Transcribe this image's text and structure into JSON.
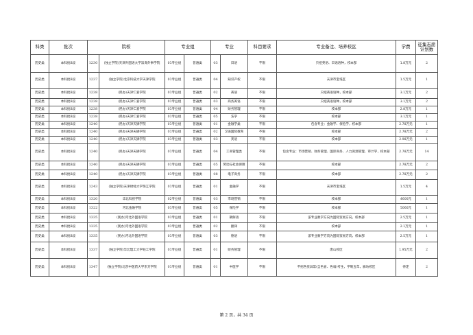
{
  "headers": {
    "category": "科类",
    "batch": "批次",
    "school": "院校",
    "group": "专业组",
    "major": "专业",
    "subject_req": "科目要求",
    "notes": "专业备注、培养校区",
    "tuition": "学费",
    "plan": "征集志愿计划数"
  },
  "rows": [
    {
      "category": "历史类",
      "batch": "本科批B段",
      "school_code": "1230",
      "school": "(独立学院)天津外国语大学滨海外事学院",
      "group_code": "01专业组",
      "group_type": "普通类",
      "major_code": "03",
      "major": "日语",
      "subject_req": "不限",
      "notes": "只招英语、日语语种，校本部",
      "tuition": "1.8万元",
      "plan": "2"
    },
    {
      "category": "历史类",
      "batch": "本科批B段",
      "school_code": "1237",
      "school": "(独立学院)北京科技大学天津学院",
      "group_code": "01专业组",
      "group_type": "普通类",
      "major_code": "04",
      "major": "知识产权",
      "subject_req": "不限",
      "notes": "天津市宝坻区",
      "tuition": "1.5万元",
      "plan": "1"
    },
    {
      "category": "历史类",
      "batch": "本科批B段",
      "school_code": "1238",
      "school": "(民办)天津仁爱学院",
      "group_code": "01专业组",
      "group_type": "普通类",
      "major_code": "02",
      "major": "英语",
      "subject_req": "不限",
      "notes": "只招英语语种，校本部",
      "tuition": "3.1万元",
      "plan": "2"
    },
    {
      "category": "历史类",
      "batch": "本科批B段",
      "school_code": "1238",
      "school": "(民办)天津仁爱学院",
      "group_code": "01专业组",
      "group_type": "普通类",
      "major_code": "03",
      "major": "商务英语",
      "subject_req": "不限",
      "notes": "只招英语语种，校本部",
      "tuition": "3.1万元",
      "plan": "2"
    },
    {
      "category": "历史类",
      "batch": "本科批B段",
      "school_code": "1238",
      "school": "(民办)天津仁爱学院",
      "group_code": "01专业组",
      "group_type": "普通类",
      "major_code": "04",
      "major": "财务管理",
      "subject_req": "不限",
      "notes": "校本部",
      "tuition": "2.8万元",
      "plan": "1"
    },
    {
      "category": "历史类",
      "batch": "本科批B段",
      "school_code": "1238",
      "school": "(民办)天津仁爱学院",
      "group_code": "01专业组",
      "group_type": "普通类",
      "major_code": "05",
      "major": "法学",
      "subject_req": "不限",
      "notes": "校本部",
      "tuition": "3.1万元",
      "plan": "1"
    },
    {
      "category": "历史类",
      "batch": "本科批B段",
      "school_code": "1240",
      "school": "(民办)天津天狮学院",
      "group_code": "01专业组",
      "group_type": "普通类",
      "major_code": "01",
      "major": "金融学类",
      "subject_req": "不限",
      "notes": "包含专业：金融学、保险学，校本部",
      "tuition": "2.78万元",
      "plan": "1"
    },
    {
      "category": "历史类",
      "batch": "本科批B段",
      "school_code": "1240",
      "school": "(民办)天津天狮学院",
      "group_code": "01专业组",
      "group_type": "普通类",
      "major_code": "02",
      "major": "汉语国际教育",
      "subject_req": "不限",
      "notes": "校本部",
      "tuition": "2.78万元",
      "plan": "2"
    },
    {
      "category": "历史类",
      "batch": "本科批B段",
      "school_code": "1240",
      "school": "(民办)天津天狮学院",
      "group_code": "01专业组",
      "group_type": "普通类",
      "major_code": "03",
      "major": "英语",
      "subject_req": "不限",
      "notes": "校本部",
      "tuition": "2.98万元",
      "plan": "1"
    },
    {
      "category": "历史类",
      "batch": "本科批B段",
      "school_code": "1240",
      "school": "(民办)天津天狮学院",
      "group_code": "01专业组",
      "group_type": "普通类",
      "major_code": "04",
      "major": "工商管理类",
      "subject_req": "不限",
      "notes": "包含专业：市场营销、财务管理、国际商务、人力资源管理、审计学，校本部",
      "tuition": "2.78万元",
      "plan": "14"
    },
    {
      "category": "历史类",
      "batch": "本科批B段",
      "school_code": "1240",
      "school": "(民办)天津天狮学院",
      "group_code": "01专业组",
      "group_type": "普通类",
      "major_code": "05",
      "major": "劳动与社会保障",
      "subject_req": "不限",
      "notes": "校本部",
      "tuition": "2.78万元",
      "plan": "2"
    },
    {
      "category": "历史类",
      "batch": "本科批B段",
      "school_code": "1240",
      "school": "(民办)天津天狮学院",
      "group_code": "01专业组",
      "group_type": "普通类",
      "major_code": "08",
      "major": "电子商务",
      "subject_req": "不限",
      "notes": "校本部",
      "tuition": "2.78万元",
      "plan": "2"
    },
    {
      "category": "历史类",
      "batch": "本科批B段",
      "school_code": "1243",
      "school": "(独立学院)天津财经大学珠江学院",
      "group_code": "01专业组",
      "group_type": "普通类",
      "major_code": "01",
      "major": "金融学",
      "subject_req": "不限",
      "notes": "天津市宝坻区",
      "tuition": "1.5万元",
      "plan": "4"
    },
    {
      "category": "历史类",
      "batch": "本科批B段",
      "school_code": "1320",
      "school": "华北科技学院",
      "group_code": "02专业组",
      "group_type": "普通类",
      "major_code": "03",
      "major": "市场营销",
      "subject_req": "不限",
      "notes": "校本部",
      "tuition": "4600元",
      "plan": "1"
    },
    {
      "category": "历史类",
      "batch": "本科批B段",
      "school_code": "1322",
      "school": "河北金融学院",
      "group_code": "01专业组",
      "group_type": "普通类",
      "major_code": "05",
      "major": "保险学",
      "subject_req": "不限",
      "notes": "校本部",
      "tuition": "5060元",
      "plan": "1"
    },
    {
      "category": "历史类",
      "batch": "本科批B段",
      "school_code": "1335",
      "school": "(民办)河北外国语学院",
      "group_code": "01专业组",
      "group_type": "普通类",
      "major_code": "01",
      "major": "朝鲜语",
      "subject_req": "不限",
      "notes": "该专业教学方向为国际贸易方向，校本部",
      "tuition": "2.5万元",
      "plan": "1"
    },
    {
      "category": "历史类",
      "batch": "本科批B段",
      "school_code": "1335",
      "school": "(民办)河北外国语学院",
      "group_code": "01专业组",
      "group_type": "普通类",
      "major_code": "02",
      "major": "翻译",
      "subject_req": "不限",
      "notes": "校本部",
      "tuition": "2.1万元",
      "plan": "1"
    },
    {
      "category": "历史类",
      "batch": "本科批B段",
      "school_code": "1335",
      "school": "(民办)河北外国语学院",
      "group_code": "01专业组",
      "group_type": "普通类",
      "major_code": "03",
      "major": "德语",
      "subject_req": "不限",
      "notes": "该专业教学方向为国际贸易方向，校本部",
      "tuition": "2.5万元",
      "plan": "1"
    },
    {
      "category": "历史类",
      "batch": "本科批B段",
      "school_code": "1337",
      "school": "(独立学院)华北理工大学轻工学院",
      "group_code": "01专业组",
      "group_type": "普通类",
      "major_code": "01",
      "major": "财务管理",
      "subject_req": "不限",
      "notes": "唐山校区",
      "tuition": "1.95万元",
      "plan": "2"
    },
    {
      "category": "历史类",
      "batch": "本科批B段",
      "school_code": "1347",
      "school": "(独立学院)北京中医药大学东方学院",
      "group_code": "01专业组",
      "group_type": "普通类",
      "major_code": "01",
      "major": "中医学",
      "subject_req": "不限",
      "notes": "不招色觉异常(全色盲、色弱)考生，学制五年，廊坊校区",
      "tuition": "待定",
      "plan": "2"
    }
  ],
  "footer": {
    "page_info": "第 2 页，共 34 页"
  }
}
